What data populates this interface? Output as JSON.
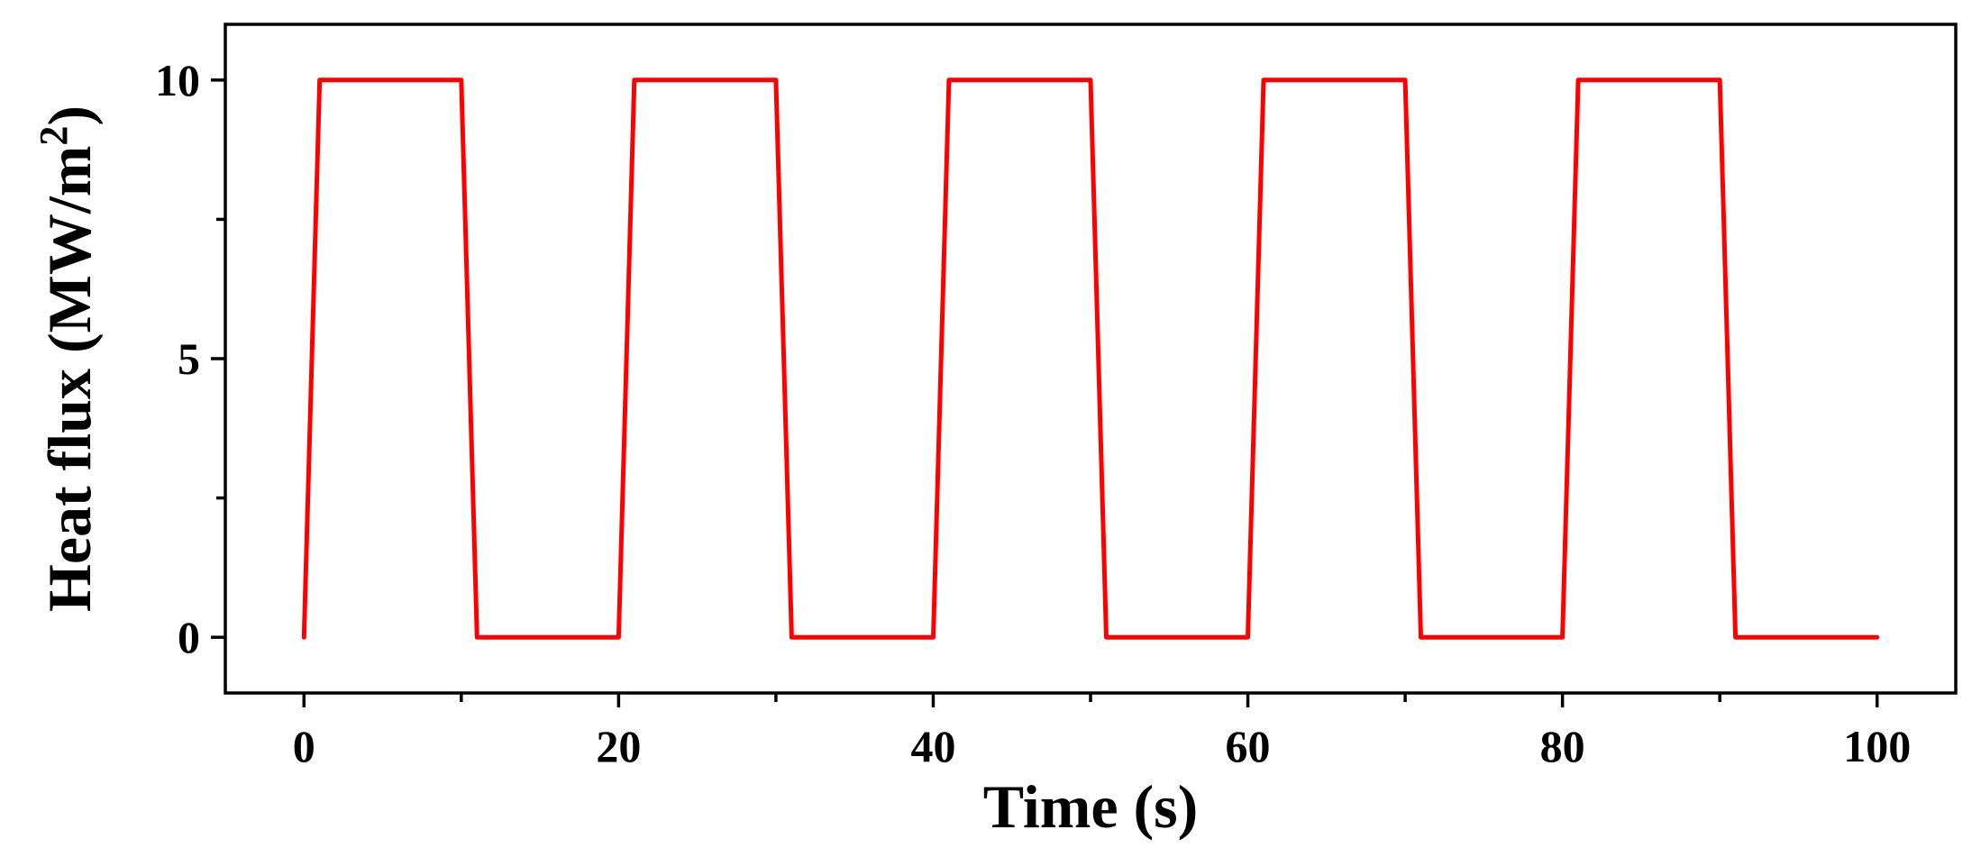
{
  "chart_data": {
    "type": "line",
    "title": "",
    "xlabel": "Time (s)",
    "ylabel": {
      "main": "Heat flux (MW/m",
      "superscript": "2",
      "close": ")"
    },
    "xlim": [
      -5,
      105
    ],
    "ylim": [
      -1,
      11
    ],
    "x_ticks": [
      0,
      20,
      40,
      60,
      80,
      100
    ],
    "x_tick_labels": [
      "0",
      "20",
      "40",
      "60",
      "80",
      "100"
    ],
    "x_minor_ticks": [
      10,
      30,
      50,
      70,
      90
    ],
    "y_ticks": [
      0,
      5,
      10
    ],
    "y_tick_labels": [
      "0",
      "5",
      "10"
    ],
    "y_minor_ticks": [
      2.5,
      7.5
    ],
    "grid": false,
    "legend": "none",
    "series": [
      {
        "color": "#ff0000",
        "x": [
          0,
          1,
          10,
          11,
          20,
          21,
          30,
          31,
          40,
          41,
          50,
          51,
          60,
          61,
          70,
          71,
          80,
          81,
          90,
          91,
          100
        ],
        "y": [
          0,
          10,
          10,
          0,
          0,
          10,
          10,
          0,
          0,
          10,
          10,
          0,
          0,
          10,
          10,
          0,
          0,
          10,
          10,
          0,
          0
        ]
      }
    ]
  }
}
